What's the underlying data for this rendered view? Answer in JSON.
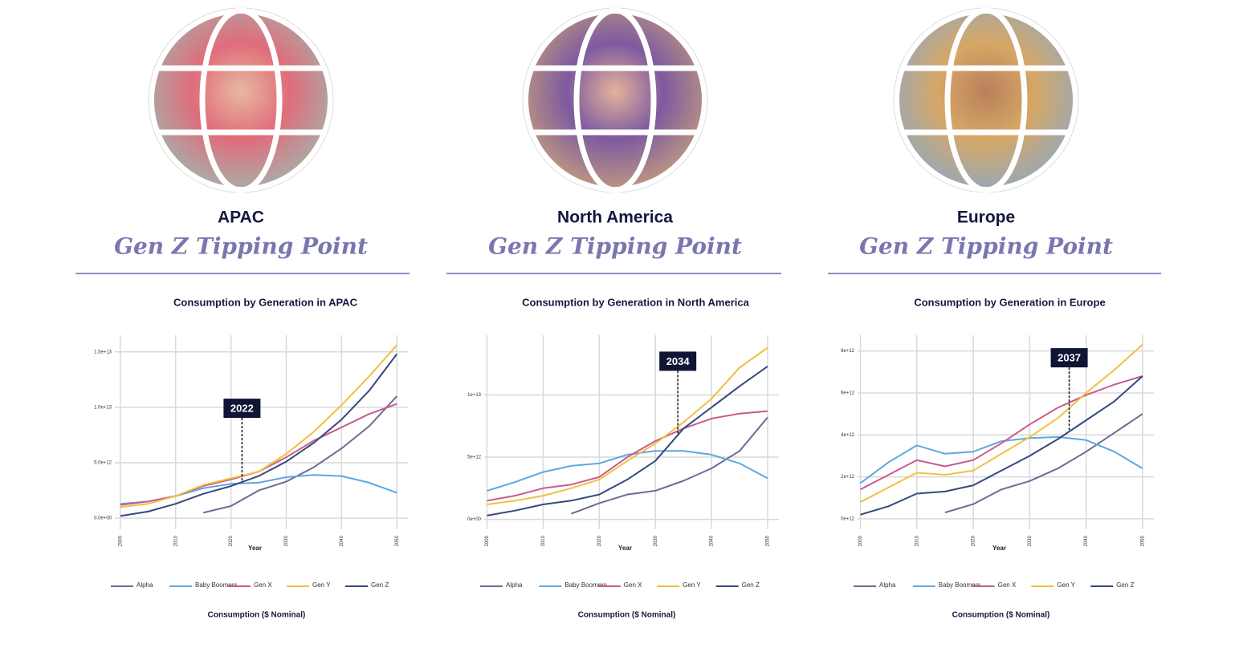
{
  "chart_data": [
    {
      "type": "line",
      "region": "APAC",
      "tagline": "Gen Z Tipping Point",
      "title": "Consumption by Generation in APAC",
      "xlabel": "Year",
      "ylabel": "Consumption ($ Nominal)",
      "annotation_x": 2022,
      "x": [
        2000,
        2005,
        2010,
        2015,
        2020,
        2025,
        2030,
        2035,
        2040,
        2045,
        2050
      ],
      "xlim": [
        1999,
        2052
      ],
      "xticks": [
        2000,
        2010,
        2020,
        2030,
        2040,
        2050
      ],
      "ylim": [
        -1000000000000.0,
        16500000000000.0
      ],
      "yticks": [
        {
          "value": 0,
          "label": "0.0e+00"
        },
        {
          "value": 5000000000000.0,
          "label": "5.0e+12"
        },
        {
          "value": 10000000000000.0,
          "label": "1.0e+13"
        },
        {
          "value": 15000000000000.0,
          "label": "1.5e+13"
        }
      ],
      "grid": true,
      "series": [
        {
          "name": "Alpha",
          "color": "#6e6a96",
          "values": [
            null,
            null,
            null,
            500000000000.0,
            1100000000000.0,
            2500000000000.0,
            3300000000000.0,
            4600000000000.0,
            6300000000000.0,
            8300000000000.0,
            11000000000000.0
          ]
        },
        {
          "name": "Baby Boomers",
          "color": "#5ea7e0",
          "values": [
            1300000000000.0,
            1500000000000.0,
            2000000000000.0,
            2700000000000.0,
            3100000000000.0,
            3200000000000.0,
            3700000000000.0,
            3900000000000.0,
            3800000000000.0,
            3200000000000.0,
            2300000000000.0
          ]
        },
        {
          "name": "Gen X",
          "color": "#c95b8c",
          "values": [
            1200000000000.0,
            1500000000000.0,
            2000000000000.0,
            2900000000000.0,
            3500000000000.0,
            4200000000000.0,
            5500000000000.0,
            7000000000000.0,
            8200000000000.0,
            9400000000000.0,
            10300000000000.0
          ]
        },
        {
          "name": "Gen Y",
          "color": "#f0c040",
          "values": [
            1000000000000.0,
            1300000000000.0,
            2000000000000.0,
            3000000000000.0,
            3600000000000.0,
            4200000000000.0,
            5800000000000.0,
            7800000000000.0,
            10200000000000.0,
            12800000000000.0,
            15600000000000.0
          ]
        },
        {
          "name": "Gen Z",
          "color": "#34497e",
          "values": [
            200000000000.0,
            600000000000.0,
            1300000000000.0,
            2200000000000.0,
            2900000000000.0,
            3800000000000.0,
            5100000000000.0,
            6800000000000.0,
            8900000000000.0,
            11500000000000.0,
            14800000000000.0
          ]
        }
      ]
    },
    {
      "type": "line",
      "region": "North America",
      "tagline": "Gen Z Tipping Point",
      "title": "Consumption by Generation in North America",
      "xlabel": "Year",
      "ylabel": "Consumption ($ Nominal)",
      "annotation_x": 2034,
      "x": [
        2000,
        2005,
        2010,
        2015,
        2020,
        2025,
        2030,
        2035,
        2040,
        2045,
        2050
      ],
      "xlim": [
        1999.5,
        2052
      ],
      "xticks": [
        2000,
        2010,
        2020,
        2030,
        2040,
        2050
      ],
      "ylim": [
        -800000000000.0,
        14800000000000.0
      ],
      "yticks": [
        {
          "value": 0,
          "label": "0e+00"
        },
        {
          "value": 5000000000000.0,
          "label": "5e+12"
        },
        {
          "value": 10000000000000.0,
          "label": "1e+13"
        }
      ],
      "grid": true,
      "series": [
        {
          "name": "Alpha",
          "color": "#6e6a96",
          "values": [
            null,
            null,
            null,
            450000000000.0,
            1300000000000.0,
            2000000000000.0,
            2300000000000.0,
            3100000000000.0,
            4100000000000.0,
            5500000000000.0,
            8200000000000.0
          ]
        },
        {
          "name": "Baby Boomers",
          "color": "#5ea7e0",
          "values": [
            2300000000000.0,
            3000000000000.0,
            3800000000000.0,
            4300000000000.0,
            4500000000000.0,
            5200000000000.0,
            5500000000000.0,
            5500000000000.0,
            5200000000000.0,
            4500000000000.0,
            3300000000000.0
          ]
        },
        {
          "name": "Gen X",
          "color": "#c95b8c",
          "values": [
            1500000000000.0,
            1900000000000.0,
            2500000000000.0,
            2800000000000.0,
            3400000000000.0,
            5000000000000.0,
            6300000000000.0,
            7300000000000.0,
            8100000000000.0,
            8500000000000.0,
            8700000000000.0
          ]
        },
        {
          "name": "Gen Y",
          "color": "#f0c040",
          "values": [
            1200000000000.0,
            1500000000000.0,
            1900000000000.0,
            2500000000000.0,
            3200000000000.0,
            4700000000000.0,
            6100000000000.0,
            7800000000000.0,
            9700000000000.0,
            12200000000000.0,
            13800000000000.0
          ]
        },
        {
          "name": "Gen Z",
          "color": "#34497e",
          "values": [
            300000000000.0,
            700000000000.0,
            1200000000000.0,
            1500000000000.0,
            2000000000000.0,
            3200000000000.0,
            4700000000000.0,
            7300000000000.0,
            9000000000000.0,
            10700000000000.0,
            12300000000000.0
          ]
        }
      ]
    },
    {
      "type": "line",
      "region": "Europe",
      "tagline": "Gen Z Tipping Point",
      "title": "Consumption by Generation in Europe",
      "xlabel": "Year",
      "ylabel": "Consumption ($ Nominal)",
      "annotation_x": 2037,
      "x": [
        2000,
        2005,
        2010,
        2015,
        2020,
        2025,
        2030,
        2035,
        2040,
        2045,
        2050
      ],
      "xlim": [
        1999.5,
        2052
      ],
      "xticks": [
        2000,
        2010,
        2020,
        2030,
        2040,
        2050
      ],
      "ylim": [
        -500000000000.0,
        8750000000000.0
      ],
      "yticks": [
        {
          "value": 0,
          "label": "0e+12"
        },
        {
          "value": 2000000000000.0,
          "label": "2e+12"
        },
        {
          "value": 4000000000000.0,
          "label": "4e+12"
        },
        {
          "value": 6000000000000.0,
          "label": "6e+12"
        },
        {
          "value": 8000000000000.0,
          "label": "8e+12"
        }
      ],
      "grid": true,
      "series": [
        {
          "name": "Alpha",
          "color": "#6e6a96",
          "values": [
            null,
            null,
            null,
            300000000000.0,
            700000000000.0,
            1400000000000.0,
            1800000000000.0,
            2400000000000.0,
            3200000000000.0,
            4100000000000.0,
            5000000000000.0
          ]
        },
        {
          "name": "Baby Boomers",
          "color": "#5ea7e0",
          "values": [
            1700000000000.0,
            2700000000000.0,
            3500000000000.0,
            3100000000000.0,
            3200000000000.0,
            3700000000000.0,
            3850000000000.0,
            3900000000000.0,
            3750000000000.0,
            3200000000000.0,
            2400000000000.0
          ]
        },
        {
          "name": "Gen X",
          "color": "#c95b8c",
          "values": [
            1400000000000.0,
            2100000000000.0,
            2800000000000.0,
            2500000000000.0,
            2800000000000.0,
            3600000000000.0,
            4500000000000.0,
            5300000000000.0,
            5900000000000.0,
            6400000000000.0,
            6800000000000.0
          ]
        },
        {
          "name": "Gen Y",
          "color": "#f0c040",
          "values": [
            800000000000.0,
            1500000000000.0,
            2200000000000.0,
            2100000000000.0,
            2300000000000.0,
            3100000000000.0,
            3900000000000.0,
            4800000000000.0,
            6000000000000.0,
            7100000000000.0,
            8300000000000.0
          ]
        },
        {
          "name": "Gen Z",
          "color": "#34497e",
          "values": [
            200000000000.0,
            600000000000.0,
            1200000000000.0,
            1300000000000.0,
            1600000000000.0,
            2300000000000.0,
            3000000000000.0,
            3800000000000.0,
            4700000000000.0,
            5600000000000.0,
            6800000000000.0
          ]
        }
      ]
    }
  ]
}
